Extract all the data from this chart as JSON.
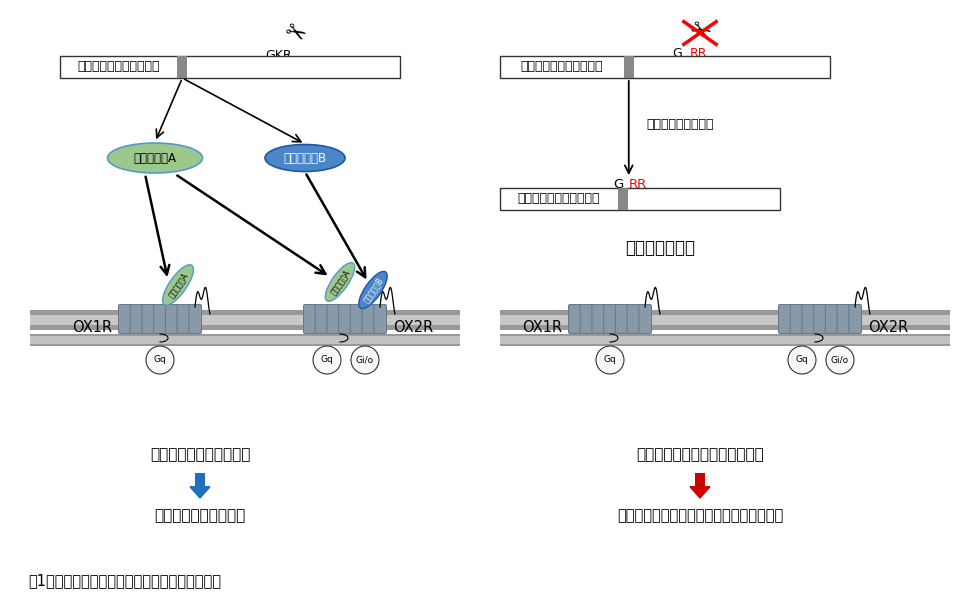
{
  "title": "図1．同定した変異の機能的影響に関する概要図",
  "background": "#ffffff",
  "left_panel": {
    "precursor_label": "野生型オレキシン前駆体",
    "cleavage_site": "GKR",
    "orexin_a_label": "オレキシンA",
    "orexin_b_label": "オレキシンB",
    "ox1r_label": "OX1R",
    "ox2r_label": "OX2R",
    "gq_label": "Gq",
    "gio_label": "Gi/o",
    "signaling_label": "オレキシンシグナリング",
    "result_label": "適切な睡眠・覚醒制御",
    "arrow_color": "#1f6fbe",
    "orexin_a_fill": "#9dc88d",
    "orexin_b_fill": "#4a86c8"
  },
  "right_panel": {
    "precursor_label": "変異体オレキシン前駆体",
    "cleavage_site": "GRR",
    "note": "適切に切断されない",
    "ox1r_label": "OX1R",
    "ox2r_label": "OX2R",
    "gq_label": "Gq",
    "gio_label": "Gi/o",
    "pharmacology_label": "薬理活性の低下",
    "signaling_label": "オレキシンシグナリングの異常",
    "result_label": "日中の眠気を引き起こす（特発性過眠症）",
    "arrow_color": "#cc0000",
    "cross_color": "#cc0000"
  },
  "membrane_gray": "#999999",
  "membrane_light": "#d4d4d4",
  "helix_fill": "#8899aa",
  "helix_edge": "#667788",
  "g_protein_fill": "#f8f8f8"
}
